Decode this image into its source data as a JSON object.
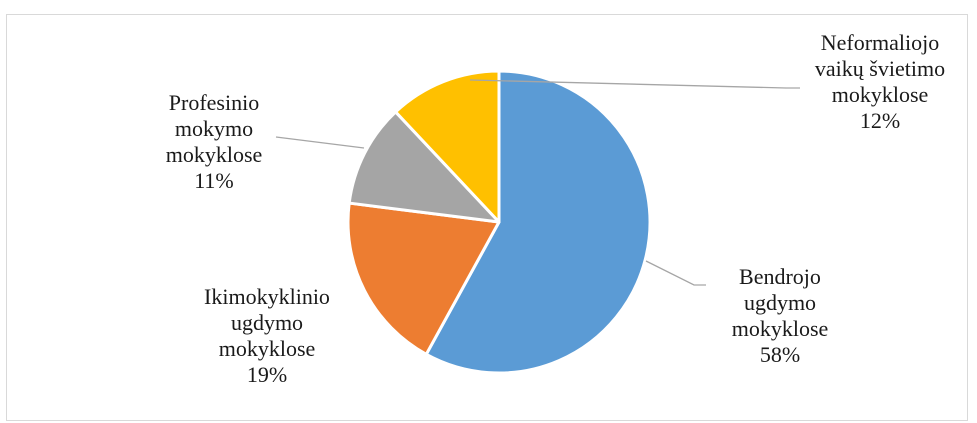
{
  "chart_data": {
    "type": "pie",
    "title": "",
    "slices": [
      {
        "label_lines": [
          "Bendrojo",
          "ugdymo",
          "mokyklose"
        ],
        "pct_label": "58%",
        "value": 58,
        "color": "#5b9bd5"
      },
      {
        "label_lines": [
          "Ikimokyklinio",
          "ugdymo",
          "mokyklose"
        ],
        "pct_label": "19%",
        "value": 19,
        "color": "#ed7d31"
      },
      {
        "label_lines": [
          "Profesinio",
          "mokymo",
          "mokyklose"
        ],
        "pct_label": "11%",
        "value": 11,
        "color": "#a5a5a5"
      },
      {
        "label_lines": [
          "Neformaliojo",
          "vaikų švietimo",
          "mokyklose"
        ],
        "pct_label": "12%",
        "value": 12,
        "color": "#ffc000"
      }
    ],
    "start": "top",
    "direction": "clockwise",
    "legend": "none",
    "data_labels": "outside with leader lines"
  }
}
